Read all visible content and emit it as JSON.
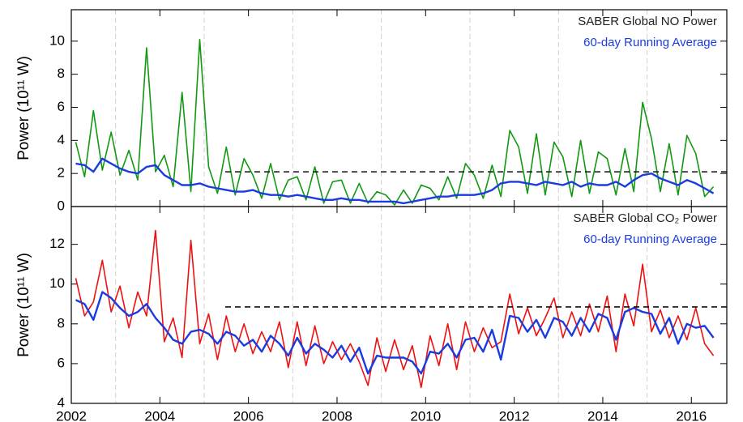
{
  "chart_data": [
    {
      "type": "line",
      "ylabel": "Power (10¹¹ W)",
      "x": [
        2002.1,
        2002.3,
        2002.5,
        2002.7,
        2002.9,
        2003.1,
        2003.3,
        2003.5,
        2003.7,
        2003.9,
        2004.1,
        2004.3,
        2004.5,
        2004.7,
        2004.9,
        2005.1,
        2005.3,
        2005.5,
        2005.7,
        2005.9,
        2006.1,
        2006.3,
        2006.5,
        2006.7,
        2006.9,
        2007.1,
        2007.3,
        2007.5,
        2007.7,
        2007.9,
        2008.1,
        2008.3,
        2008.5,
        2008.7,
        2008.9,
        2009.1,
        2009.3,
        2009.5,
        2009.7,
        2009.9,
        2010.1,
        2010.3,
        2010.5,
        2010.7,
        2010.9,
        2011.1,
        2011.3,
        2011.5,
        2011.7,
        2011.9,
        2012.1,
        2012.3,
        2012.5,
        2012.7,
        2012.9,
        2013.1,
        2013.3,
        2013.5,
        2013.7,
        2013.9,
        2014.1,
        2014.3,
        2014.5,
        2014.7,
        2014.9,
        2015.1,
        2015.3,
        2015.5,
        2015.7,
        2015.9,
        2016.1,
        2016.3,
        2016.5
      ],
      "series": [
        {
          "name": "SABER Global NO Power",
          "color": "#119911",
          "values": [
            3.9,
            1.8,
            5.8,
            2.2,
            4.5,
            1.9,
            3.4,
            1.6,
            9.6,
            2.1,
            3.1,
            1.2,
            6.9,
            0.9,
            10.1,
            2.4,
            0.8,
            3.6,
            0.7,
            2.9,
            1.9,
            0.5,
            2.6,
            0.4,
            1.6,
            1.8,
            0.4,
            2.4,
            0.2,
            1.5,
            1.6,
            0.2,
            1.4,
            0.2,
            0.9,
            0.7,
            0.1,
            1.0,
            0.2,
            1.3,
            1.1,
            0.4,
            1.8,
            0.5,
            2.6,
            1.9,
            0.5,
            2.5,
            0.6,
            4.6,
            3.6,
            0.8,
            4.4,
            0.7,
            3.9,
            3.0,
            0.6,
            4.0,
            0.8,
            3.3,
            2.9,
            0.7,
            3.5,
            0.9,
            6.3,
            4.1,
            0.9,
            3.8,
            0.7,
            4.3,
            3.2,
            0.6,
            1.2
          ]
        },
        {
          "name": "60-day Running Average",
          "color": "#1a3be0",
          "values": [
            2.6,
            2.5,
            2.1,
            2.9,
            2.6,
            2.3,
            2.1,
            2.0,
            2.4,
            2.5,
            1.9,
            1.6,
            1.3,
            1.3,
            1.4,
            1.2,
            1.1,
            1.0,
            0.9,
            0.9,
            1.0,
            0.8,
            0.7,
            0.7,
            0.6,
            0.7,
            0.6,
            0.5,
            0.4,
            0.4,
            0.5,
            0.4,
            0.4,
            0.3,
            0.3,
            0.3,
            0.3,
            0.2,
            0.3,
            0.4,
            0.5,
            0.6,
            0.6,
            0.7,
            0.7,
            0.7,
            0.8,
            1.0,
            1.4,
            1.5,
            1.5,
            1.4,
            1.3,
            1.5,
            1.4,
            1.3,
            1.5,
            1.2,
            1.4,
            1.3,
            1.3,
            1.5,
            1.2,
            1.6,
            1.9,
            2.0,
            1.7,
            1.5,
            1.3,
            1.6,
            1.4,
            1.1,
            0.8
          ]
        }
      ],
      "hline": 2.1,
      "xlim": [
        2002,
        2016.8
      ],
      "xticks": [
        2002,
        2004,
        2006,
        2008,
        2010,
        2012,
        2014,
        2016
      ],
      "xgrid": [
        2003,
        2005,
        2007,
        2009,
        2011,
        2013,
        2015
      ],
      "ylim": [
        0,
        11.9
      ],
      "yticks": [
        0,
        2,
        4,
        6,
        8,
        10
      ]
    },
    {
      "type": "line",
      "ylabel": "Power (10¹¹ W)",
      "x": [
        2002.1,
        2002.3,
        2002.5,
        2002.7,
        2002.9,
        2003.1,
        2003.3,
        2003.5,
        2003.7,
        2003.9,
        2004.1,
        2004.3,
        2004.5,
        2004.7,
        2004.9,
        2005.1,
        2005.3,
        2005.5,
        2005.7,
        2005.9,
        2006.1,
        2006.3,
        2006.5,
        2006.7,
        2006.9,
        2007.1,
        2007.3,
        2007.5,
        2007.7,
        2007.9,
        2008.1,
        2008.3,
        2008.5,
        2008.7,
        2008.9,
        2009.1,
        2009.3,
        2009.5,
        2009.7,
        2009.9,
        2010.1,
        2010.3,
        2010.5,
        2010.7,
        2010.9,
        2011.1,
        2011.3,
        2011.5,
        2011.7,
        2011.9,
        2012.1,
        2012.3,
        2012.5,
        2012.7,
        2012.9,
        2013.1,
        2013.3,
        2013.5,
        2013.7,
        2013.9,
        2014.1,
        2014.3,
        2014.5,
        2014.7,
        2014.9,
        2015.1,
        2015.3,
        2015.5,
        2015.7,
        2015.9,
        2016.1,
        2016.3,
        2016.5
      ],
      "series": [
        {
          "name": "SABER Global CO₂ Power",
          "color": "#ee1111",
          "values": [
            10.3,
            8.4,
            9.1,
            11.2,
            8.6,
            9.9,
            7.8,
            9.6,
            8.4,
            12.7,
            7.1,
            8.3,
            6.3,
            12.2,
            7.0,
            8.5,
            6.2,
            8.4,
            6.6,
            8.0,
            6.5,
            7.6,
            6.6,
            8.1,
            5.8,
            8.1,
            5.9,
            7.9,
            6.0,
            7.1,
            6.2,
            7.0,
            6.1,
            4.9,
            7.3,
            5.6,
            7.2,
            5.7,
            6.9,
            4.8,
            7.4,
            5.9,
            8.0,
            5.7,
            8.1,
            6.6,
            7.8,
            6.8,
            7.1,
            9.5,
            7.5,
            8.8,
            7.4,
            8.3,
            9.3,
            7.3,
            8.6,
            7.4,
            9.0,
            7.6,
            9.4,
            6.6,
            9.5,
            7.9,
            11.0,
            7.6,
            8.7,
            7.3,
            8.4,
            7.2,
            8.8,
            7.0,
            6.4
          ]
        },
        {
          "name": "60-day Running Average",
          "color": "#1a3be0",
          "values": [
            9.2,
            9.0,
            8.2,
            9.6,
            9.3,
            8.8,
            8.4,
            8.6,
            9.0,
            8.3,
            7.8,
            7.2,
            7.0,
            7.6,
            7.7,
            7.5,
            7.0,
            7.6,
            7.4,
            6.9,
            7.2,
            6.6,
            7.4,
            7.0,
            6.4,
            7.3,
            6.5,
            7.0,
            6.7,
            6.3,
            6.9,
            6.1,
            6.8,
            5.5,
            6.4,
            6.3,
            6.3,
            6.3,
            6.1,
            5.5,
            6.6,
            6.5,
            7.0,
            6.3,
            7.2,
            7.3,
            6.6,
            7.7,
            6.2,
            8.4,
            8.3,
            7.6,
            8.2,
            7.3,
            8.3,
            8.1,
            7.4,
            8.3,
            7.6,
            8.5,
            8.3,
            7.2,
            8.6,
            8.8,
            8.6,
            8.5,
            7.5,
            8.3,
            7.0,
            8.0,
            7.8,
            7.9,
            7.3
          ]
        }
      ],
      "hline": 8.85,
      "xlim": [
        2002,
        2016.8
      ],
      "xticks": [
        2002,
        2004,
        2006,
        2008,
        2010,
        2012,
        2014,
        2016
      ],
      "xgrid": [
        2003,
        2005,
        2007,
        2009,
        2011,
        2013,
        2015
      ],
      "ylim": [
        4,
        13.9
      ],
      "yticks": [
        4,
        6,
        8,
        10,
        12
      ]
    }
  ]
}
